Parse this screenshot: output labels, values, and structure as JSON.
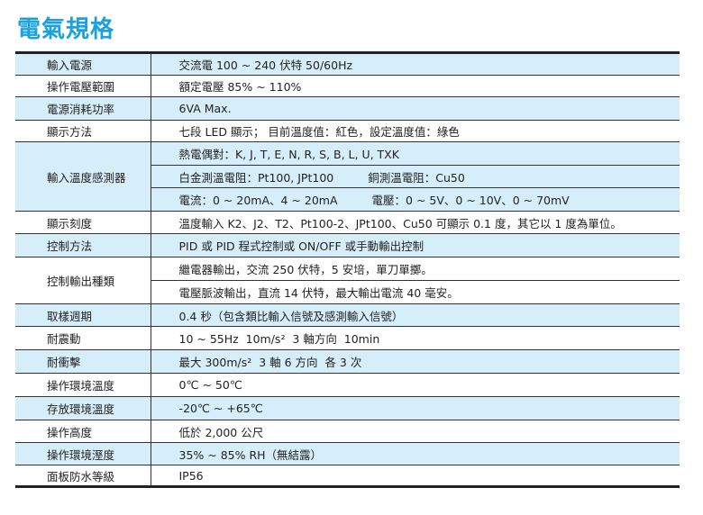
{
  "title": "電氣規格",
  "highlight_color": "#d6eef9",
  "title_color": "#1ba0e0",
  "rows": [
    {
      "label": "輸入電源",
      "values": [
        "交流電 100 ~ 240 伏特 50/60Hz"
      ]
    },
    {
      "label": "操作電壓範圍",
      "values": [
        "額定電壓 85% ~ 110%"
      ]
    },
    {
      "label": "電源消耗功率",
      "values": [
        "6VA Max."
      ]
    },
    {
      "label": "顯示方法",
      "values": [
        "七段 LED 顯示； 目前溫度值：紅色，設定溫度值：綠色"
      ]
    },
    {
      "label": "輸入溫度感測器",
      "values": [
        "熱電偶對：K, J, T, E, N, R, S, B, L, U, TXK",
        "白金測溫電阻：Pt100, JPt100",
        "銅測溫電阻：Cu50",
        "電流：0 ~ 20mA、4 ~ 20mA",
        "電壓：0 ~ 5V、0 ~ 10V、0 ~ 70mV"
      ]
    },
    {
      "label": "顯示刻度",
      "values": [
        "溫度輸入 K2、J2、T2、Pt100-2、JPt100、Cu50 可顯示 0.1 度，其它以 1 度為單位。"
      ]
    },
    {
      "label": "控制方法",
      "values": [
        "PID 或 PID 程式控制或 ON/OFF 或手動輸出控制"
      ]
    },
    {
      "label": "控制輸出種類",
      "values": [
        "繼電器輸出，交流 250 伏特，5 安培，單刀單擲。",
        "電壓脈波輸出，直流 14 伏特，最大輸出電流 40 毫安。"
      ]
    },
    {
      "label": "取樣週期",
      "values": [
        "0.4 秒（包含類比輸入信號及感測輸入信號）"
      ]
    },
    {
      "label": "耐震動",
      "values": [
        "10 ~ 55Hz  10m/s²  3 軸方向  10min"
      ]
    },
    {
      "label": "耐衝擊",
      "values": [
        "最大 300m/s²  3 軸 6 方向  各 3 次"
      ]
    },
    {
      "label": "操作環境溫度",
      "values": [
        "0℃ ~ 50℃"
      ]
    },
    {
      "label": "存放環境溫度",
      "values": [
        "-20℃ ~ +65℃"
      ]
    },
    {
      "label": "操作高度",
      "values": [
        "低於 2,000 公尺"
      ]
    },
    {
      "label": "操作環境溼度",
      "values": [
        "35% ~ 85% RH（無結露）"
      ]
    },
    {
      "label": "面板防水等級",
      "values": [
        "IP56"
      ]
    }
  ]
}
